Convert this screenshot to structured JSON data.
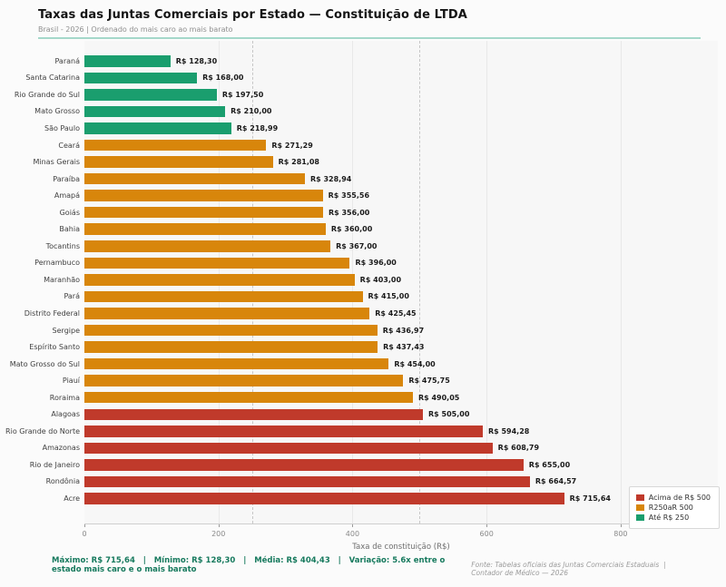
{
  "header": {
    "title": "Taxas das Juntas Comerciais por Estado — Constituição de LTDA",
    "subtitle": "Brasil - 2026  |  Ordenado do mais caro ao mais barato"
  },
  "chart_data": {
    "type": "bar",
    "orientation": "horizontal",
    "title": "Taxas das Juntas Comerciais por Estado — Constituição de LTDA",
    "xlabel": "Taxa de constituição (R$)",
    "xlim": [
      0,
      945
    ],
    "xticks": [
      0,
      200,
      400,
      600,
      800
    ],
    "reference_lines": [
      250,
      500
    ],
    "grid": true,
    "legend_position": "lower right",
    "categories": [
      "Paraná",
      "Santa Catarina",
      "Rio Grande do Sul",
      "Mato Grosso",
      "São Paulo",
      "Ceará",
      "Minas Gerais",
      "Paraíba",
      "Amapá",
      "Goiás",
      "Bahia",
      "Tocantins",
      "Pernambuco",
      "Maranhão",
      "Pará",
      "Distrito Federal",
      "Sergipe",
      "Espírito Santo",
      "Mato Grosso do Sul",
      "Piauí",
      "Roraima",
      "Alagoas",
      "Rio Grande do Norte",
      "Amazonas",
      "Rio de Janeiro",
      "Rondônia",
      "Acre"
    ],
    "values": [
      128.3,
      168.0,
      197.5,
      210.0,
      218.99,
      271.29,
      281.08,
      328.94,
      355.56,
      356.0,
      360.0,
      367.0,
      396.0,
      403.0,
      415.0,
      425.45,
      436.97,
      437.43,
      454.0,
      475.75,
      490.05,
      505.0,
      594.28,
      608.79,
      655.0,
      664.57,
      715.64
    ],
    "value_labels": [
      "R$ 128,30",
      "R$ 168,00",
      "R$ 197,50",
      "R$ 210,00",
      "R$ 218,99",
      "R$ 271,29",
      "R$ 281,08",
      "R$ 328,94",
      "R$ 355,56",
      "R$ 356,00",
      "R$ 360,00",
      "R$ 367,00",
      "R$ 396,00",
      "R$ 403,00",
      "R$ 415,00",
      "R$ 425,45",
      "R$ 436,97",
      "R$ 437,43",
      "R$ 454,00",
      "R$ 475,75",
      "R$ 490,05",
      "R$ 505,00",
      "R$ 594,28",
      "R$ 608,79",
      "R$ 655,00",
      "R$ 664,57",
      "R$ 715,64"
    ],
    "thresholds": {
      "low_max": 250,
      "mid_max": 500
    },
    "colors": {
      "low": "#1a9e6e",
      "mid": "#d8860b",
      "high": "#c03a2b"
    },
    "legend": [
      {
        "label": "Acima de R$ 500",
        "color": "#c03a2b"
      },
      {
        "label": "R250aR 500",
        "color": "#d8860b"
      },
      {
        "label": "Até R$ 250",
        "color": "#1a9e6e"
      }
    ],
    "accent_rule_color": "#a5d8ca"
  },
  "footer": {
    "stats": "Máximo: R$ 715,64   |   Mínimo: R$ 128,30   |   Média: R$ 404,43   |   Variação: 5.6x entre o estado mais caro e o mais barato",
    "source": "Fonte: Tabelas oficiais das Juntas Comerciais Estaduais  |  Contador de Médico — 2026"
  }
}
